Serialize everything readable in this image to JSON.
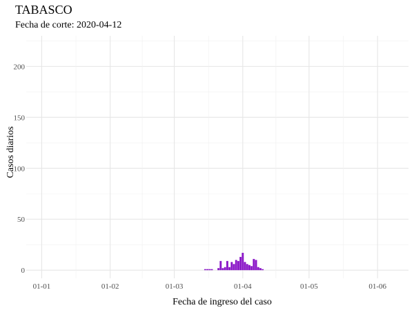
{
  "chart_data": {
    "type": "bar",
    "title": "TABASCO",
    "subtitle": "Fecha de corte: 2020-04-12",
    "xlabel": "Fecha de ingreso del caso",
    "ylabel": "Casos diarios",
    "x_type": "date",
    "x_year": 2020,
    "xlim": [
      "2019-12-25",
      "2020-06-15"
    ],
    "ylim": [
      -8,
      230
    ],
    "x_ticks": [
      {
        "date": "2020-01-01",
        "label": "01-01"
      },
      {
        "date": "2020-02-01",
        "label": "01-02"
      },
      {
        "date": "2020-03-01",
        "label": "01-03"
      },
      {
        "date": "2020-04-01",
        "label": "01-04"
      },
      {
        "date": "2020-05-01",
        "label": "01-05"
      },
      {
        "date": "2020-06-01",
        "label": "01-06"
      }
    ],
    "y_ticks": [
      0,
      50,
      100,
      150,
      200
    ],
    "grid": true,
    "bar_color": "#8a17c7",
    "data": [
      {
        "date": "2020-03-15",
        "value": 1
      },
      {
        "date": "2020-03-16",
        "value": 1
      },
      {
        "date": "2020-03-17",
        "value": 1
      },
      {
        "date": "2020-03-18",
        "value": 1
      },
      {
        "date": "2020-03-21",
        "value": 2
      },
      {
        "date": "2020-03-22",
        "value": 9
      },
      {
        "date": "2020-03-23",
        "value": 2
      },
      {
        "date": "2020-03-24",
        "value": 3
      },
      {
        "date": "2020-03-25",
        "value": 9
      },
      {
        "date": "2020-03-26",
        "value": 3
      },
      {
        "date": "2020-03-27",
        "value": 8
      },
      {
        "date": "2020-03-28",
        "value": 6
      },
      {
        "date": "2020-03-29",
        "value": 10
      },
      {
        "date": "2020-03-30",
        "value": 9
      },
      {
        "date": "2020-03-31",
        "value": 13
      },
      {
        "date": "2020-04-01",
        "value": 17
      },
      {
        "date": "2020-04-02",
        "value": 8
      },
      {
        "date": "2020-04-03",
        "value": 6
      },
      {
        "date": "2020-04-04",
        "value": 5
      },
      {
        "date": "2020-04-05",
        "value": 4
      },
      {
        "date": "2020-04-06",
        "value": 11
      },
      {
        "date": "2020-04-07",
        "value": 10
      },
      {
        "date": "2020-04-08",
        "value": 3
      },
      {
        "date": "2020-04-09",
        "value": 2
      },
      {
        "date": "2020-04-10",
        "value": 1
      }
    ]
  }
}
